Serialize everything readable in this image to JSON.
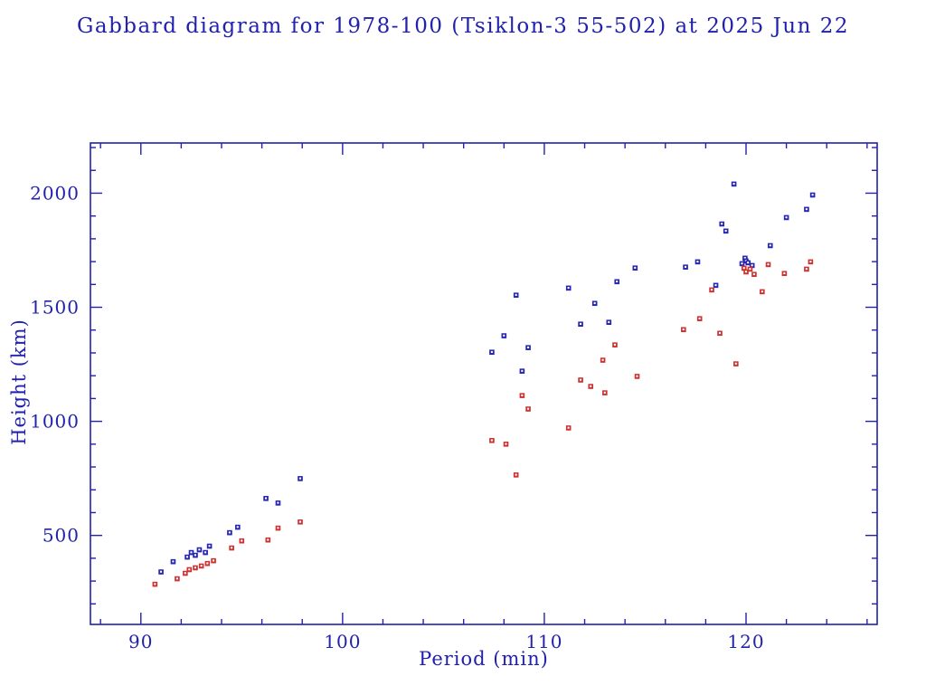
{
  "title": "Gabbard diagram for 1978-100 (Tsiklon-3 55-502) at 2025 Jun 22",
  "chart_data": {
    "type": "scatter",
    "title": "Gabbard diagram for 1978-100 (Tsiklon-3 55-502) at 2025 Jun 22",
    "xlabel": "Period (min)",
    "ylabel": "Height (km)",
    "xlim": [
      87.5,
      126.5
    ],
    "ylim": [
      110,
      2220
    ],
    "xticks": [
      90,
      100,
      110,
      120
    ],
    "yticks": [
      500,
      1000,
      1500,
      2000
    ],
    "x_minor_step": 2,
    "y_minor_step": 100,
    "grid": false,
    "legend": "none",
    "frame_color": "#2222aa",
    "series": [
      {
        "name": "apogee",
        "color": "#2626b0",
        "points": [
          [
            91.0,
            340
          ],
          [
            91.6,
            385
          ],
          [
            92.3,
            405
          ],
          [
            92.5,
            425
          ],
          [
            92.7,
            413
          ],
          [
            92.9,
            437
          ],
          [
            93.2,
            425
          ],
          [
            93.4,
            453
          ],
          [
            94.4,
            512
          ],
          [
            94.8,
            536
          ],
          [
            96.2,
            662
          ],
          [
            96.8,
            642
          ],
          [
            97.9,
            749
          ],
          [
            107.4,
            1303
          ],
          [
            108.0,
            1375
          ],
          [
            108.6,
            1553
          ],
          [
            108.9,
            1220
          ],
          [
            109.2,
            1323
          ],
          [
            111.2,
            1584
          ],
          [
            111.8,
            1426
          ],
          [
            112.5,
            1517
          ],
          [
            113.2,
            1434
          ],
          [
            113.6,
            1612
          ],
          [
            114.5,
            1672
          ],
          [
            117.0,
            1676
          ],
          [
            117.6,
            1699
          ],
          [
            118.5,
            1596
          ],
          [
            118.8,
            1865
          ],
          [
            119.0,
            1834
          ],
          [
            119.4,
            2040
          ],
          [
            119.8,
            1691
          ],
          [
            119.95,
            1715
          ],
          [
            120.0,
            1703
          ],
          [
            120.1,
            1695
          ],
          [
            120.3,
            1683
          ],
          [
            121.2,
            1770
          ],
          [
            122.0,
            1893
          ],
          [
            123.0,
            1929
          ],
          [
            123.3,
            1992
          ]
        ]
      },
      {
        "name": "perigee",
        "color": "#cc3333",
        "points": [
          [
            90.7,
            286
          ],
          [
            91.8,
            310
          ],
          [
            92.2,
            334
          ],
          [
            92.4,
            350
          ],
          [
            92.7,
            358
          ],
          [
            93.0,
            366
          ],
          [
            93.3,
            377
          ],
          [
            93.6,
            389
          ],
          [
            94.5,
            445
          ],
          [
            95.0,
            476
          ],
          [
            96.3,
            480
          ],
          [
            96.8,
            532
          ],
          [
            97.9,
            559
          ],
          [
            107.4,
            916
          ],
          [
            108.1,
            900
          ],
          [
            108.6,
            765
          ],
          [
            108.9,
            1113
          ],
          [
            109.2,
            1054
          ],
          [
            111.2,
            971
          ],
          [
            111.8,
            1181
          ],
          [
            112.3,
            1153
          ],
          [
            112.9,
            1268
          ],
          [
            113.0,
            1125
          ],
          [
            113.5,
            1335
          ],
          [
            114.6,
            1197
          ],
          [
            116.9,
            1402
          ],
          [
            117.7,
            1450
          ],
          [
            118.3,
            1576
          ],
          [
            118.7,
            1386
          ],
          [
            119.5,
            1252
          ],
          [
            119.9,
            1671
          ],
          [
            120.0,
            1655
          ],
          [
            120.2,
            1667
          ],
          [
            120.4,
            1644
          ],
          [
            120.8,
            1568
          ],
          [
            121.1,
            1687
          ],
          [
            121.9,
            1648
          ],
          [
            123.0,
            1667
          ],
          [
            123.2,
            1699
          ]
        ]
      }
    ]
  }
}
